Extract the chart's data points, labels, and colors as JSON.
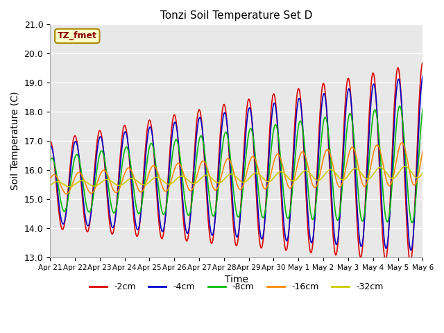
{
  "title": "Tonzi Soil Temperature Set D",
  "xlabel": "Time",
  "ylabel": "Soil Temperature (C)",
  "ylim": [
    13.0,
    21.0
  ],
  "yticks": [
    13.0,
    14.0,
    15.0,
    16.0,
    17.0,
    18.0,
    19.0,
    20.0,
    21.0
  ],
  "xtick_labels": [
    "Apr 21",
    "Apr 22",
    "Apr 23",
    "Apr 24",
    "Apr 25",
    "Apr 26",
    "Apr 27",
    "Apr 28",
    "Apr 29",
    "Apr 30",
    "May 1",
    "May 2",
    "May 3",
    "May 4",
    "May 5",
    "May 6"
  ],
  "series_labels": [
    "-2cm",
    "-4cm",
    "-8cm",
    "-16cm",
    "-32cm"
  ],
  "series_colors": [
    "#dd0000",
    "#0000cc",
    "#00bb00",
    "#ff8800",
    "#cccc00"
  ],
  "series_linewidths": [
    1.2,
    1.2,
    1.2,
    1.2,
    1.2
  ],
  "legend_label": "TZ_fmet",
  "legend_facecolor": "#ffffcc",
  "legend_edgecolor": "#aa8800",
  "legend_textcolor": "#880000",
  "bg_color": "#e8e8e8",
  "grid_color": "#ffffff",
  "n_points": 720,
  "days": 15
}
